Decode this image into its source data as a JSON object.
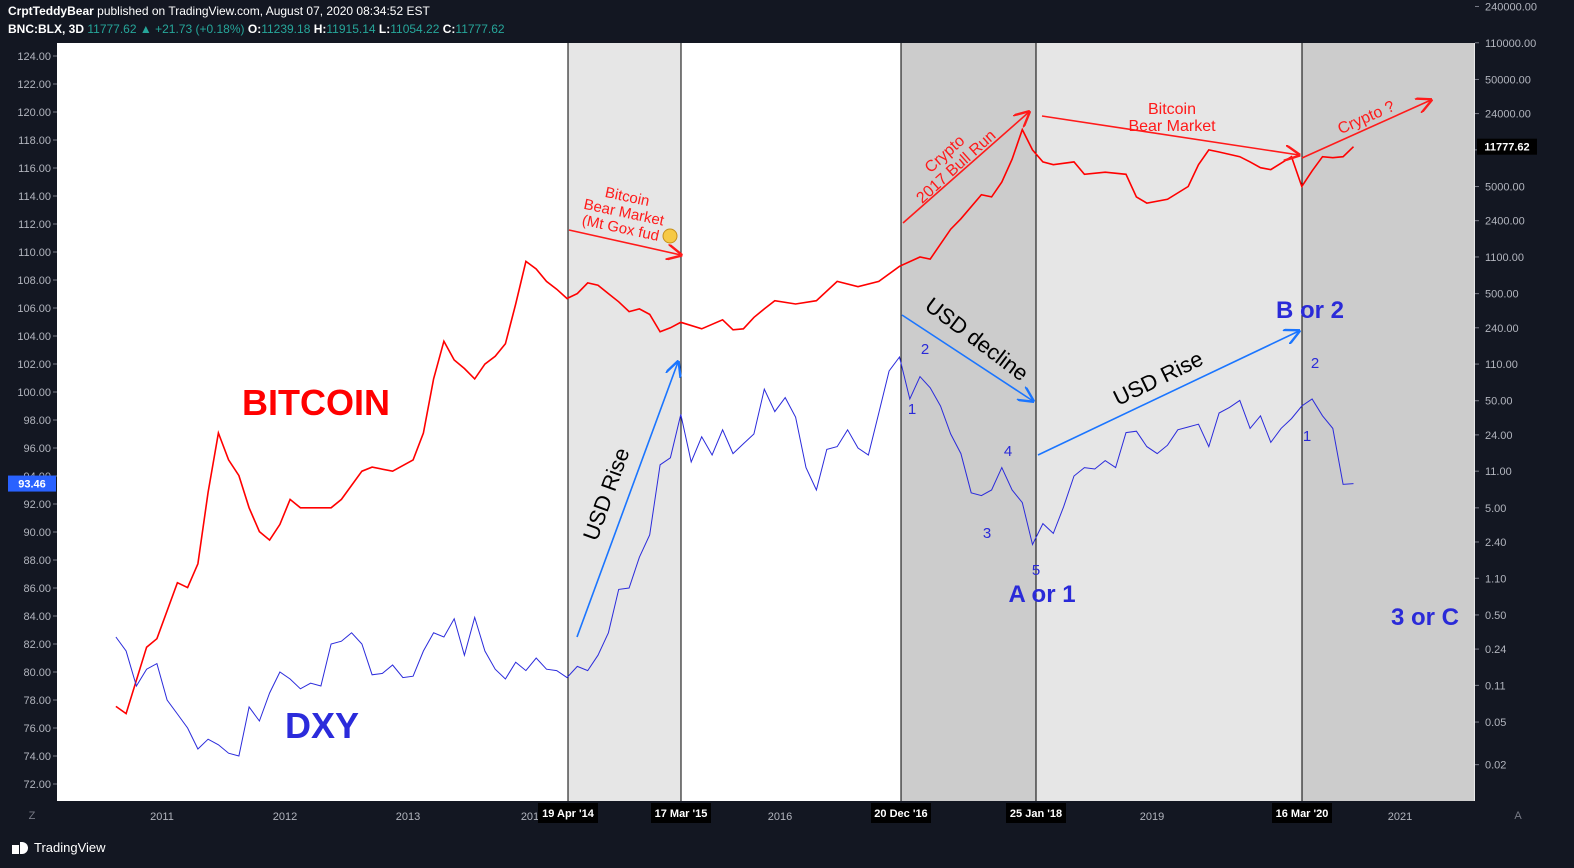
{
  "header": {
    "publisher": "CrptTeddyBear",
    "published_text": "published on TradingView.com, August 07, 2020 08:34:52 EST",
    "symbol": "BNC:BLX, 3D",
    "last": "11777.62",
    "change": "+21.73 (+0.18%)",
    "o_label": "O:",
    "o_val": "11239.18",
    "h_label": "H:",
    "h_val": "11915.14",
    "l_label": "L:",
    "l_val": "11054.22",
    "c_label": "C:",
    "c_val": "11777.62"
  },
  "footer": {
    "brand": "TradingView",
    "z_button": "Z",
    "a_button": "A"
  },
  "chart_data": {
    "type": "line",
    "x_ticks": [
      "2011",
      "2012",
      "2013",
      "201",
      "2016",
      "2019",
      "2021"
    ],
    "date_markers": [
      "19 Apr '14",
      "17 Mar '15",
      "20 Dec '16",
      "25 Jan '18",
      "16 Mar '20"
    ],
    "left_axis": {
      "ticks": [
        "124.00",
        "122.00",
        "120.00",
        "118.00",
        "116.00",
        "114.00",
        "112.00",
        "110.00",
        "108.00",
        "106.00",
        "104.00",
        "102.00",
        "100.00",
        "98.00",
        "96.00",
        "94.00",
        "92.00",
        "90.00",
        "88.00",
        "86.00",
        "84.00",
        "82.00",
        "80.00",
        "78.00",
        "76.00",
        "74.00",
        "72.00"
      ],
      "current": "93.46"
    },
    "right_axis": {
      "scale": "log",
      "ticks": [
        "240000.00",
        "110000.00",
        "50000.00",
        "24000.00",
        "11000.00",
        "5000.00",
        "2400.00",
        "1100.00",
        "500.00",
        "240.00",
        "110.00",
        "50.00",
        "24.00",
        "11.00",
        "5.00",
        "2.40",
        "1.10",
        "0.50",
        "0.24",
        "0.11",
        "0.05",
        "0.02"
      ],
      "current": "11777.62"
    },
    "series": [
      {
        "name": "BITCOIN",
        "color": "#ff0000",
        "points": [
          [
            "2010-08",
            0.07
          ],
          [
            "2010-09",
            0.06
          ],
          [
            "2010-11",
            0.25
          ],
          [
            "2010-12",
            0.3
          ],
          [
            "2011-02",
            1.0
          ],
          [
            "2011-03",
            0.9
          ],
          [
            "2011-04",
            1.5
          ],
          [
            "2011-05",
            7
          ],
          [
            "2011-06",
            25
          ],
          [
            "2011-07",
            14
          ],
          [
            "2011-08",
            10
          ],
          [
            "2011-09",
            5
          ],
          [
            "2011-10",
            3
          ],
          [
            "2011-11",
            2.5
          ],
          [
            "2011-12",
            3.5
          ],
          [
            "2012-01",
            6
          ],
          [
            "2012-02",
            5
          ],
          [
            "2012-03",
            5
          ],
          [
            "2012-05",
            5
          ],
          [
            "2012-06",
            6
          ],
          [
            "2012-08",
            11
          ],
          [
            "2012-09",
            12
          ],
          [
            "2012-11",
            11
          ],
          [
            "2013-01",
            14
          ],
          [
            "2013-02",
            25
          ],
          [
            "2013-03",
            80
          ],
          [
            "2013-04",
            180
          ],
          [
            "2013-05",
            120
          ],
          [
            "2013-06",
            100
          ],
          [
            "2013-07",
            80
          ],
          [
            "2013-08",
            110
          ],
          [
            "2013-09",
            130
          ],
          [
            "2013-10",
            170
          ],
          [
            "2013-11",
            400
          ],
          [
            "2013-12",
            1000
          ],
          [
            "2014-01",
            850
          ],
          [
            "2014-02",
            650
          ],
          [
            "2014-03",
            550
          ],
          [
            "2014-04",
            450
          ],
          [
            "2014-05",
            500
          ],
          [
            "2014-06",
            630
          ],
          [
            "2014-07",
            600
          ],
          [
            "2014-08",
            500
          ],
          [
            "2014-09",
            420
          ],
          [
            "2014-10",
            340
          ],
          [
            "2014-11",
            360
          ],
          [
            "2014-12",
            320
          ],
          [
            "2015-01",
            220
          ],
          [
            "2015-02",
            240
          ],
          [
            "2015-03",
            270
          ],
          [
            "2015-05",
            235
          ],
          [
            "2015-07",
            285
          ],
          [
            "2015-08",
            230
          ],
          [
            "2015-09",
            235
          ],
          [
            "2015-10",
            300
          ],
          [
            "2015-11",
            360
          ],
          [
            "2015-12",
            430
          ],
          [
            "2016-02",
            400
          ],
          [
            "2016-04",
            430
          ],
          [
            "2016-06",
            650
          ],
          [
            "2016-08",
            580
          ],
          [
            "2016-10",
            650
          ],
          [
            "2016-12",
            900
          ],
          [
            "2017-02",
            1100
          ],
          [
            "2017-03",
            1050
          ],
          [
            "2017-05",
            2000
          ],
          [
            "2017-06",
            2500
          ],
          [
            "2017-08",
            4200
          ],
          [
            "2017-09",
            4000
          ],
          [
            "2017-10",
            5500
          ],
          [
            "2017-11",
            9000
          ],
          [
            "2017-12",
            17000
          ],
          [
            "2018-01",
            11000
          ],
          [
            "2018-02",
            8500
          ],
          [
            "2018-03",
            8000
          ],
          [
            "2018-05",
            8500
          ],
          [
            "2018-06",
            6500
          ],
          [
            "2018-08",
            6800
          ],
          [
            "2018-10",
            6500
          ],
          [
            "2018-11",
            4000
          ],
          [
            "2018-12",
            3500
          ],
          [
            "2019-02",
            3800
          ],
          [
            "2019-04",
            5000
          ],
          [
            "2019-05",
            8000
          ],
          [
            "2019-06",
            11000
          ],
          [
            "2019-07",
            10500
          ],
          [
            "2019-09",
            9500
          ],
          [
            "2019-10",
            8500
          ],
          [
            "2019-11",
            7500
          ],
          [
            "2019-12",
            7200
          ],
          [
            "2020-02",
            9500
          ],
          [
            "2020-03",
            5000
          ],
          [
            "2020-04",
            7000
          ],
          [
            "2020-05",
            9500
          ],
          [
            "2020-06",
            9300
          ],
          [
            "2020-07",
            9500
          ],
          [
            "2020-08",
            11777.62
          ]
        ]
      },
      {
        "name": "DXY",
        "color": "#2b2bdb",
        "points": [
          [
            "2010-08",
            82.5
          ],
          [
            "2010-09",
            81.5
          ],
          [
            "2010-10",
            79
          ],
          [
            "2010-11",
            80.2
          ],
          [
            "2010-12",
            80.6
          ],
          [
            "2011-01",
            78
          ],
          [
            "2011-02",
            77
          ],
          [
            "2011-03",
            76
          ],
          [
            "2011-04",
            74.5
          ],
          [
            "2011-05",
            75.2
          ],
          [
            "2011-06",
            74.8
          ],
          [
            "2011-07",
            74.2
          ],
          [
            "2011-08",
            74
          ],
          [
            "2011-09",
            77.5
          ],
          [
            "2011-10",
            76.5
          ],
          [
            "2011-11",
            78.5
          ],
          [
            "2011-12",
            80
          ],
          [
            "2012-01",
            79.5
          ],
          [
            "2012-02",
            78.8
          ],
          [
            "2012-03",
            79.2
          ],
          [
            "2012-04",
            79
          ],
          [
            "2012-05",
            82
          ],
          [
            "2012-06",
            82.2
          ],
          [
            "2012-07",
            82.8
          ],
          [
            "2012-08",
            82
          ],
          [
            "2012-09",
            79.8
          ],
          [
            "2012-10",
            79.9
          ],
          [
            "2012-11",
            80.5
          ],
          [
            "2012-12",
            79.6
          ],
          [
            "2013-01",
            79.7
          ],
          [
            "2013-02",
            81.5
          ],
          [
            "2013-03",
            82.8
          ],
          [
            "2013-04",
            82.5
          ],
          [
            "2013-05",
            83.8
          ],
          [
            "2013-06",
            81.2
          ],
          [
            "2013-07",
            83.9
          ],
          [
            "2013-08",
            81.5
          ],
          [
            "2013-09",
            80.2
          ],
          [
            "2013-10",
            79.5
          ],
          [
            "2013-11",
            80.7
          ],
          [
            "2013-12",
            80.1
          ],
          [
            "2014-01",
            81
          ],
          [
            "2014-02",
            80.2
          ],
          [
            "2014-03",
            80.1
          ],
          [
            "2014-04",
            79.6
          ],
          [
            "2014-05",
            80.4
          ],
          [
            "2014-06",
            80.1
          ],
          [
            "2014-07",
            81.2
          ],
          [
            "2014-08",
            82.8
          ],
          [
            "2014-09",
            85.9
          ],
          [
            "2014-10",
            86
          ],
          [
            "2014-11",
            88.2
          ],
          [
            "2014-12",
            89.8
          ],
          [
            "2015-01",
            94.8
          ],
          [
            "2015-02",
            95.3
          ],
          [
            "2015-03",
            98.4
          ],
          [
            "2015-04",
            95
          ],
          [
            "2015-05",
            96.8
          ],
          [
            "2015-06",
            95.5
          ],
          [
            "2015-07",
            97.3
          ],
          [
            "2015-08",
            95.6
          ],
          [
            "2015-09",
            96.3
          ],
          [
            "2015-10",
            97
          ],
          [
            "2015-11",
            100.2
          ],
          [
            "2015-12",
            98.6
          ],
          [
            "2016-01",
            99.6
          ],
          [
            "2016-02",
            98.2
          ],
          [
            "2016-03",
            94.6
          ],
          [
            "2016-04",
            93
          ],
          [
            "2016-05",
            95.9
          ],
          [
            "2016-06",
            96.1
          ],
          [
            "2016-07",
            97.3
          ],
          [
            "2016-08",
            96
          ],
          [
            "2016-09",
            95.5
          ],
          [
            "2016-10",
            98.5
          ],
          [
            "2016-11",
            101.5
          ],
          [
            "2016-12",
            102.5
          ],
          [
            "2017-01",
            99.5
          ],
          [
            "2017-02",
            101.1
          ],
          [
            "2017-03",
            100.3
          ],
          [
            "2017-04",
            99
          ],
          [
            "2017-05",
            97
          ],
          [
            "2017-06",
            95.6
          ],
          [
            "2017-07",
            92.8
          ],
          [
            "2017-08",
            92.6
          ],
          [
            "2017-09",
            93
          ],
          [
            "2017-10",
            94.6
          ],
          [
            "2017-11",
            93
          ],
          [
            "2017-12",
            92.1
          ],
          [
            "2018-01",
            89.1
          ],
          [
            "2018-02",
            90.6
          ],
          [
            "2018-03",
            89.9
          ],
          [
            "2018-04",
            91.8
          ],
          [
            "2018-05",
            94
          ],
          [
            "2018-06",
            94.6
          ],
          [
            "2018-07",
            94.5
          ],
          [
            "2018-08",
            95.1
          ],
          [
            "2018-09",
            94.6
          ],
          [
            "2018-10",
            97.1
          ],
          [
            "2018-11",
            97.2
          ],
          [
            "2018-12",
            96.1
          ],
          [
            "2019-01",
            95.6
          ],
          [
            "2019-02",
            96.2
          ],
          [
            "2019-03",
            97.3
          ],
          [
            "2019-04",
            97.5
          ],
          [
            "2019-05",
            97.7
          ],
          [
            "2019-06",
            96.1
          ],
          [
            "2019-07",
            98.5
          ],
          [
            "2019-08",
            98.9
          ],
          [
            "2019-09",
            99.4
          ],
          [
            "2019-10",
            97.4
          ],
          [
            "2019-11",
            98.3
          ],
          [
            "2019-12",
            96.4
          ],
          [
            "2020-01",
            97.4
          ],
          [
            "2020-02",
            98.1
          ],
          [
            "2020-03",
            99
          ],
          [
            "2020-04",
            99.5
          ],
          [
            "2020-05",
            98.3
          ],
          [
            "2020-06",
            97.4
          ],
          [
            "2020-07",
            93.4
          ],
          [
            "2020-08",
            93.46
          ]
        ]
      }
    ],
    "annotations": {
      "bitcoin_label": "BITCOIN",
      "dxy_label": "DXY",
      "bear_2014": [
        "Bitcoin",
        "Bear Market",
        "(Mt Gox fud"
      ],
      "bull_2017": [
        "Crypto",
        "2017 Bull Run"
      ],
      "bear_2018": [
        "Bitcoin",
        "Bear Market"
      ],
      "crypto_q": "Crypto ?",
      "usd_rise_1": "USD Rise",
      "usd_decline": "USD decline",
      "usd_rise_2": "USD Rise",
      "a_or_1": "A or 1",
      "b_or_2": "B or 2",
      "three_or_c": "3 or C",
      "waves": [
        "1",
        "2",
        "3",
        "4",
        "5",
        "1",
        "2"
      ]
    },
    "colors": {
      "bitcoin": "#ff0000",
      "dxy": "#2b2bdb",
      "annotation_red": "#ff1a1a",
      "annotation_blue": "#1a75ff",
      "wave_blue": "#2a2ad8"
    }
  }
}
